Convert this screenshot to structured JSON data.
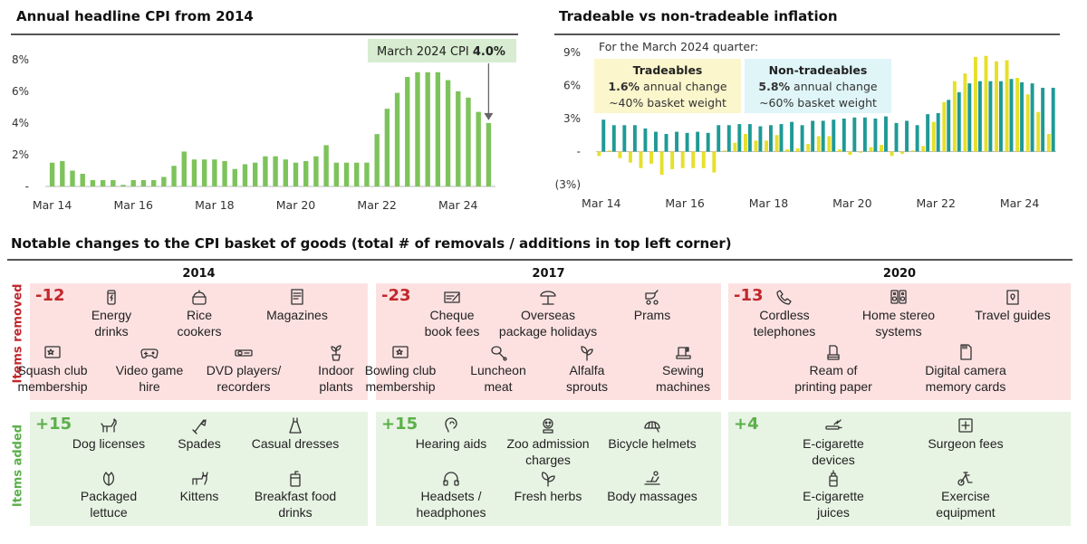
{
  "left_chart": {
    "title": "Annual headline CPI from 2014",
    "annotation_prefix": "March 2024 CPI ",
    "annotation_value": "4.0%"
  },
  "right_chart": {
    "title": "Tradeable vs non-tradeable inflation",
    "subtitle": "For the March 2024 quarter:",
    "tradeables": {
      "name": "Tradeables",
      "change_value": "1.6%",
      "change_text": " annual change",
      "weight": "~40% basket weight"
    },
    "nontradeables": {
      "name": "Non-tradeables",
      "change_value": "5.8%",
      "change_text": " annual change",
      "weight": "~60% basket weight"
    }
  },
  "colors": {
    "cpi_bar": "#7dc35b",
    "tradeable": "#e6e02a",
    "nontradeable": "#1f9a96",
    "removed_bg": "#fde1e1",
    "added_bg": "#e7f3e3",
    "removed_text": "#c0282d",
    "added_text": "#5bb04a",
    "annotation_bg": "#d7ecd0",
    "trade_box": "#fbf6cc",
    "nontrade_box": "#dff5f7"
  },
  "chart_data": [
    {
      "type": "bar",
      "title": "Annual headline CPI from 2014",
      "x_tick_labels": [
        "Mar 14",
        "Mar 16",
        "Mar 18",
        "Mar 20",
        "Mar 22",
        "Mar 24"
      ],
      "y_tick_labels": [
        "-",
        "2%",
        "4%",
        "6%",
        "8%"
      ],
      "ylim": [
        0,
        8.5
      ],
      "grid": false,
      "values": [
        1.5,
        1.6,
        1.0,
        0.8,
        0.4,
        0.4,
        0.4,
        0.1,
        0.4,
        0.4,
        0.4,
        0.6,
        1.3,
        2.2,
        1.7,
        1.7,
        1.7,
        1.6,
        1.1,
        1.4,
        1.5,
        1.9,
        1.9,
        1.7,
        1.5,
        1.6,
        1.9,
        2.6,
        1.5,
        1.5,
        1.5,
        1.5,
        3.3,
        4.9,
        5.9,
        6.9,
        7.2,
        7.2,
        7.2,
        6.7,
        6.0,
        5.6,
        4.7,
        4.0
      ]
    },
    {
      "type": "bar",
      "title": "Tradeable vs non-tradeable inflation",
      "x_tick_labels": [
        "Mar 14",
        "Mar 16",
        "Mar 18",
        "Mar 20",
        "Mar 22",
        "Mar 24"
      ],
      "y_tick_labels": [
        "(3%)",
        "-",
        "3%",
        "6%",
        "9%"
      ],
      "ylim": [
        -3.5,
        9.5
      ],
      "grid": false,
      "series": [
        {
          "name": "Tradeables",
          "values": [
            -0.4,
            0.1,
            -0.6,
            -1.0,
            -1.5,
            -1.1,
            -2.1,
            -1.6,
            -1.5,
            -1.5,
            -1.5,
            -1.9,
            0.1,
            0.8,
            1.6,
            1.0,
            1.0,
            1.5,
            0.2,
            0.3,
            0.7,
            1.4,
            1.4,
            0.2,
            -0.3,
            -0.1,
            0.4,
            0.6,
            -0.4,
            -0.2,
            0.1,
            0.5,
            2.7,
            4.5,
            6.4,
            7.1,
            8.6,
            8.7,
            8.2,
            8.3,
            6.7,
            5.2,
            3.6,
            1.6
          ]
        },
        {
          "name": "Non-tradeables",
          "values": [
            2.9,
            2.4,
            2.4,
            2.4,
            2.1,
            1.8,
            1.6,
            1.8,
            1.7,
            1.8,
            1.7,
            2.4,
            2.4,
            2.5,
            2.5,
            2.3,
            2.4,
            2.5,
            2.7,
            2.4,
            2.8,
            2.8,
            2.9,
            3.0,
            3.1,
            3.1,
            3.0,
            3.2,
            2.6,
            2.8,
            2.4,
            3.4,
            3.5,
            4.7,
            5.4,
            6.2,
            6.4,
            6.4,
            6.4,
            6.6,
            6.3,
            6.2,
            5.8,
            5.8
          ]
        }
      ]
    }
  ],
  "basket": {
    "title": "Notable changes to the CPI basket of goods (total # of removals / additions in top left corner)",
    "row_removed": "Items removed",
    "row_added": "Items added",
    "years": [
      "2014",
      "2017",
      "2020"
    ],
    "groups": [
      {
        "removed_count": "-12",
        "added_count": "+15",
        "removed": [
          {
            "icon": "energy-drink-can",
            "lines": [
              "Energy",
              "drinks"
            ]
          },
          {
            "icon": "rice-cooker",
            "lines": [
              "Rice",
              "cookers"
            ]
          },
          {
            "icon": "magazine",
            "lines": [
              "Magazines"
            ]
          },
          {
            "icon": "squash-club-card",
            "lines": [
              "Squash club",
              "membership"
            ]
          },
          {
            "icon": "game-controller",
            "lines": [
              "Video game",
              "hire"
            ]
          },
          {
            "icon": "dvd-player",
            "lines": [
              "DVD players/",
              "recorders"
            ]
          },
          {
            "icon": "potted-plant",
            "lines": [
              "Indoor",
              "plants"
            ]
          }
        ],
        "added": [
          {
            "icon": "dog",
            "lines": [
              "Dog licenses"
            ]
          },
          {
            "icon": "spade",
            "lines": [
              "Spades"
            ]
          },
          {
            "icon": "dress",
            "lines": [
              "Casual dresses"
            ]
          },
          {
            "icon": "lettuce",
            "lines": [
              "Packaged",
              "lettuce"
            ]
          },
          {
            "icon": "kitten",
            "lines": [
              "Kittens"
            ]
          },
          {
            "icon": "drink-cup",
            "lines": [
              "Breakfast food",
              "drinks"
            ]
          }
        ]
      },
      {
        "removed_count": "-23",
        "added_count": "+15",
        "removed": [
          {
            "icon": "cheque",
            "lines": [
              "Cheque",
              "book fees"
            ]
          },
          {
            "icon": "beach-umbrella",
            "lines": [
              "Overseas",
              "package holidays"
            ]
          },
          {
            "icon": "pram",
            "lines": [
              "Prams"
            ]
          },
          {
            "icon": "bowling-card",
            "lines": [
              "Bowling club",
              "membership"
            ]
          },
          {
            "icon": "meat",
            "lines": [
              "Luncheon",
              "meat"
            ]
          },
          {
            "icon": "sprouts",
            "lines": [
              "Alfalfa",
              "sprouts"
            ]
          },
          {
            "icon": "sewing-machine",
            "lines": [
              "Sewing",
              "machines"
            ]
          }
        ],
        "added": [
          {
            "icon": "hearing-aid",
            "lines": [
              "Hearing aids"
            ]
          },
          {
            "icon": "zoo-animal",
            "lines": [
              "Zoo admission",
              "charges"
            ]
          },
          {
            "icon": "bicycle-helmet",
            "lines": [
              "Bicycle helmets"
            ]
          },
          {
            "icon": "headphones",
            "lines": [
              "Headsets /",
              "headphones"
            ]
          },
          {
            "icon": "herbs",
            "lines": [
              "Fresh herbs"
            ]
          },
          {
            "icon": "massage",
            "lines": [
              "Body massages"
            ]
          }
        ]
      },
      {
        "removed_count": "-13",
        "added_count": "+4",
        "removed": [
          {
            "icon": "cordless-phone",
            "lines": [
              "Cordless",
              "telephones"
            ]
          },
          {
            "icon": "stereo-speakers",
            "lines": [
              "Home stereo",
              "systems"
            ]
          },
          {
            "icon": "travel-guide",
            "lines": [
              "Travel guides"
            ]
          },
          {
            "icon": "paper-ream",
            "lines": [
              "Ream of",
              "printing paper"
            ]
          },
          {
            "icon": "memory-card",
            "lines": [
              "Digital camera",
              "memory cards"
            ]
          }
        ],
        "added": [
          {
            "icon": "e-cigarette",
            "lines": [
              "E-cigarette",
              "devices"
            ]
          },
          {
            "icon": "surgeon-plus",
            "lines": [
              "Surgeon fees"
            ]
          },
          {
            "icon": "e-liquid-bottle",
            "lines": [
              "E-cigarette",
              "juices"
            ]
          },
          {
            "icon": "exercise-bike",
            "lines": [
              "Exercise",
              "equipment"
            ]
          }
        ]
      }
    ]
  }
}
